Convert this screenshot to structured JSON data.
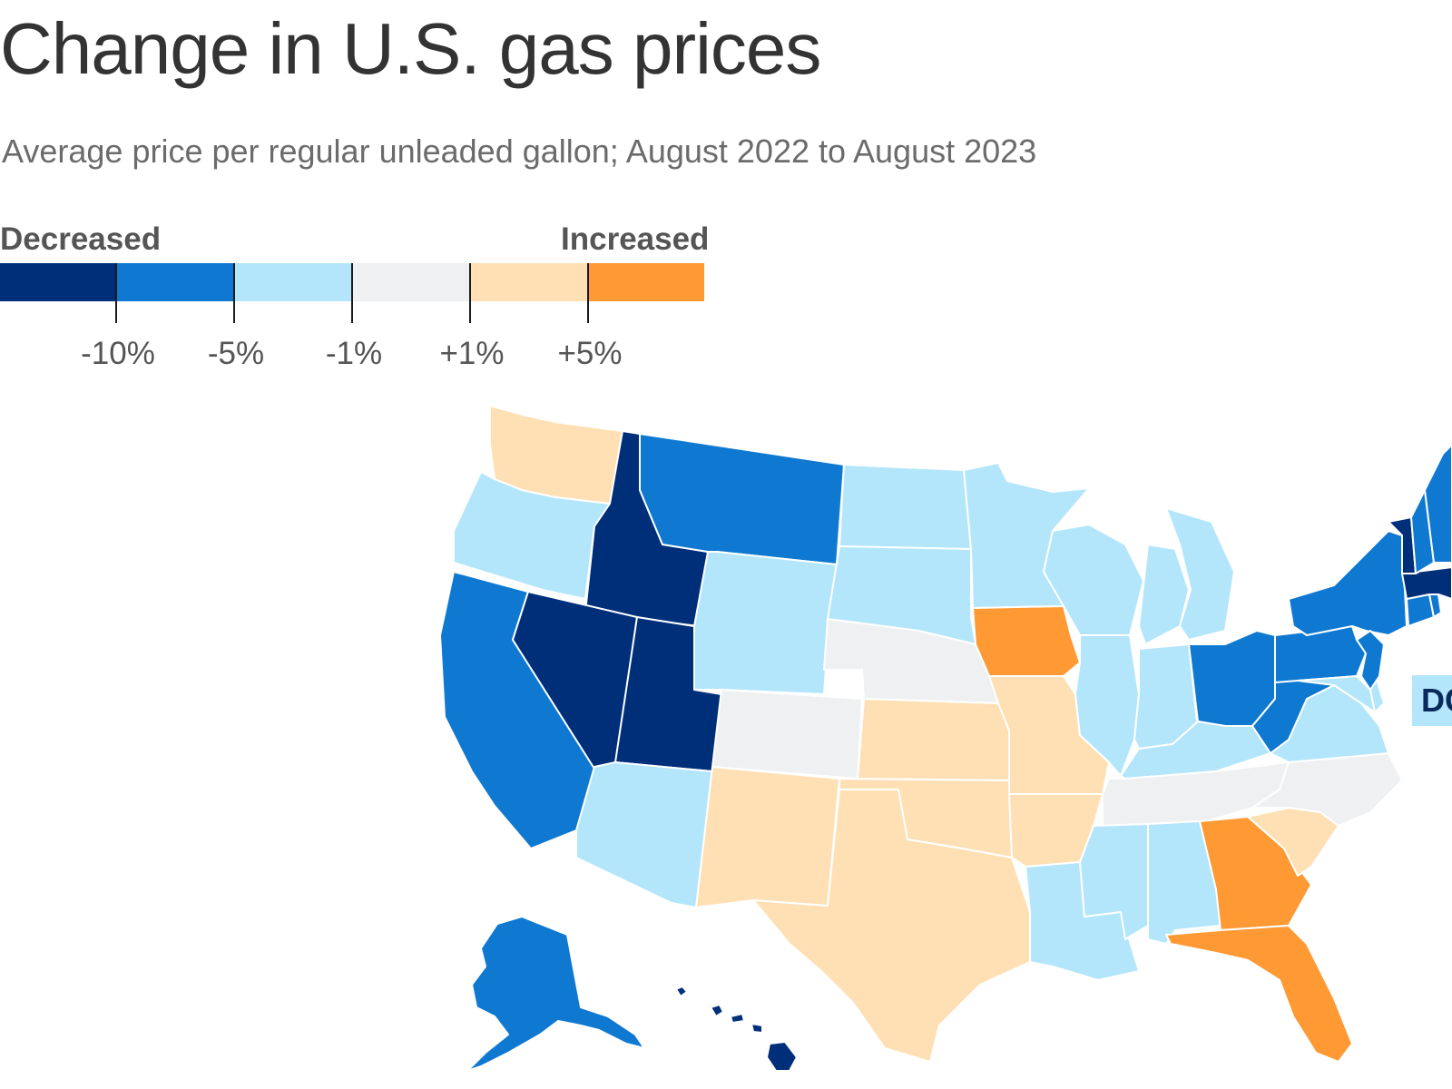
{
  "header": {
    "title": "Change in U.S. gas prices",
    "subtitle": "Average price per regular unleaded gallon; August 2022 to August 2023"
  },
  "legend": {
    "decreased_label": "Decreased",
    "increased_label": "Increased",
    "bins": [
      {
        "id": "dec10",
        "color": "#002f7a"
      },
      {
        "id": "dec5",
        "color": "#0f79d2"
      },
      {
        "id": "dec1",
        "color": "#b3e6fa"
      },
      {
        "id": "flat",
        "color": "#eff0f1"
      },
      {
        "id": "inc1",
        "color": "#ffe0b5"
      },
      {
        "id": "inc5",
        "color": "#ff9933"
      }
    ],
    "ticks": [
      "-10%",
      "-5%",
      "-1%",
      "+1%",
      "+5%"
    ]
  },
  "callout": {
    "label": "DC"
  },
  "map_data": {
    "type": "choropleth",
    "states": [
      {
        "code": "WA",
        "bin": "inc1"
      },
      {
        "code": "OR",
        "bin": "dec1"
      },
      {
        "code": "CA",
        "bin": "dec5"
      },
      {
        "code": "ID",
        "bin": "dec10"
      },
      {
        "code": "NV",
        "bin": "dec10"
      },
      {
        "code": "UT",
        "bin": "dec10"
      },
      {
        "code": "AZ",
        "bin": "dec1"
      },
      {
        "code": "MT",
        "bin": "dec5"
      },
      {
        "code": "WY",
        "bin": "dec1"
      },
      {
        "code": "CO",
        "bin": "flat"
      },
      {
        "code": "NM",
        "bin": "inc1"
      },
      {
        "code": "ND",
        "bin": "dec1"
      },
      {
        "code": "SD",
        "bin": "dec1"
      },
      {
        "code": "NE",
        "bin": "flat"
      },
      {
        "code": "KS",
        "bin": "inc1"
      },
      {
        "code": "OK",
        "bin": "inc1"
      },
      {
        "code": "TX",
        "bin": "inc1"
      },
      {
        "code": "MN",
        "bin": "dec1"
      },
      {
        "code": "IA",
        "bin": "inc5"
      },
      {
        "code": "MO",
        "bin": "inc1"
      },
      {
        "code": "AR",
        "bin": "inc1"
      },
      {
        "code": "LA",
        "bin": "dec1"
      },
      {
        "code": "WI",
        "bin": "dec1"
      },
      {
        "code": "IL",
        "bin": "dec1"
      },
      {
        "code": "MI",
        "bin": "dec1"
      },
      {
        "code": "IN",
        "bin": "dec1"
      },
      {
        "code": "OH",
        "bin": "dec5"
      },
      {
        "code": "KY",
        "bin": "dec1"
      },
      {
        "code": "TN",
        "bin": "flat"
      },
      {
        "code": "MS",
        "bin": "dec1"
      },
      {
        "code": "AL",
        "bin": "dec1"
      },
      {
        "code": "GA",
        "bin": "inc5"
      },
      {
        "code": "FL",
        "bin": "inc5"
      },
      {
        "code": "SC",
        "bin": "inc1"
      },
      {
        "code": "NC",
        "bin": "flat"
      },
      {
        "code": "VA",
        "bin": "dec1"
      },
      {
        "code": "WV",
        "bin": "dec5"
      },
      {
        "code": "PA",
        "bin": "dec5"
      },
      {
        "code": "NY",
        "bin": "dec5"
      },
      {
        "code": "MD",
        "bin": "dec1"
      },
      {
        "code": "DE",
        "bin": "dec1"
      },
      {
        "code": "NJ",
        "bin": "dec5"
      },
      {
        "code": "CT",
        "bin": "dec5"
      },
      {
        "code": "RI",
        "bin": "dec5"
      },
      {
        "code": "MA",
        "bin": "dec10"
      },
      {
        "code": "VT",
        "bin": "dec10"
      },
      {
        "code": "NH",
        "bin": "dec5"
      },
      {
        "code": "ME",
        "bin": "dec5"
      },
      {
        "code": "AK",
        "bin": "dec5"
      },
      {
        "code": "HI",
        "bin": "dec10"
      },
      {
        "code": "DC",
        "bin": "dec1"
      }
    ]
  }
}
